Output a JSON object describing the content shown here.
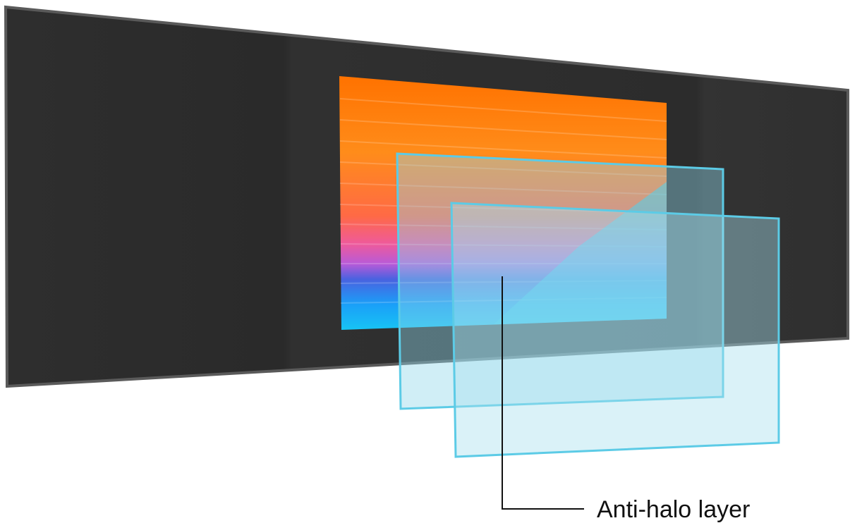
{
  "diagram": {
    "callout": {
      "label": "Anti-halo layer"
    },
    "colors": {
      "panel": "#2b2b2b",
      "panel_edge": "#5a5a5a",
      "layer_fill": "#bfe7f2",
      "layer_stroke": "#5ccbe6",
      "leader_line": "#111111"
    },
    "screen_gradient": [
      "#ff7a00",
      "#ff8a1a",
      "#ff6f3a",
      "#f45a8a",
      "#c757d6",
      "#3e67e0",
      "#1aa7ff",
      "#13c8f5"
    ]
  }
}
